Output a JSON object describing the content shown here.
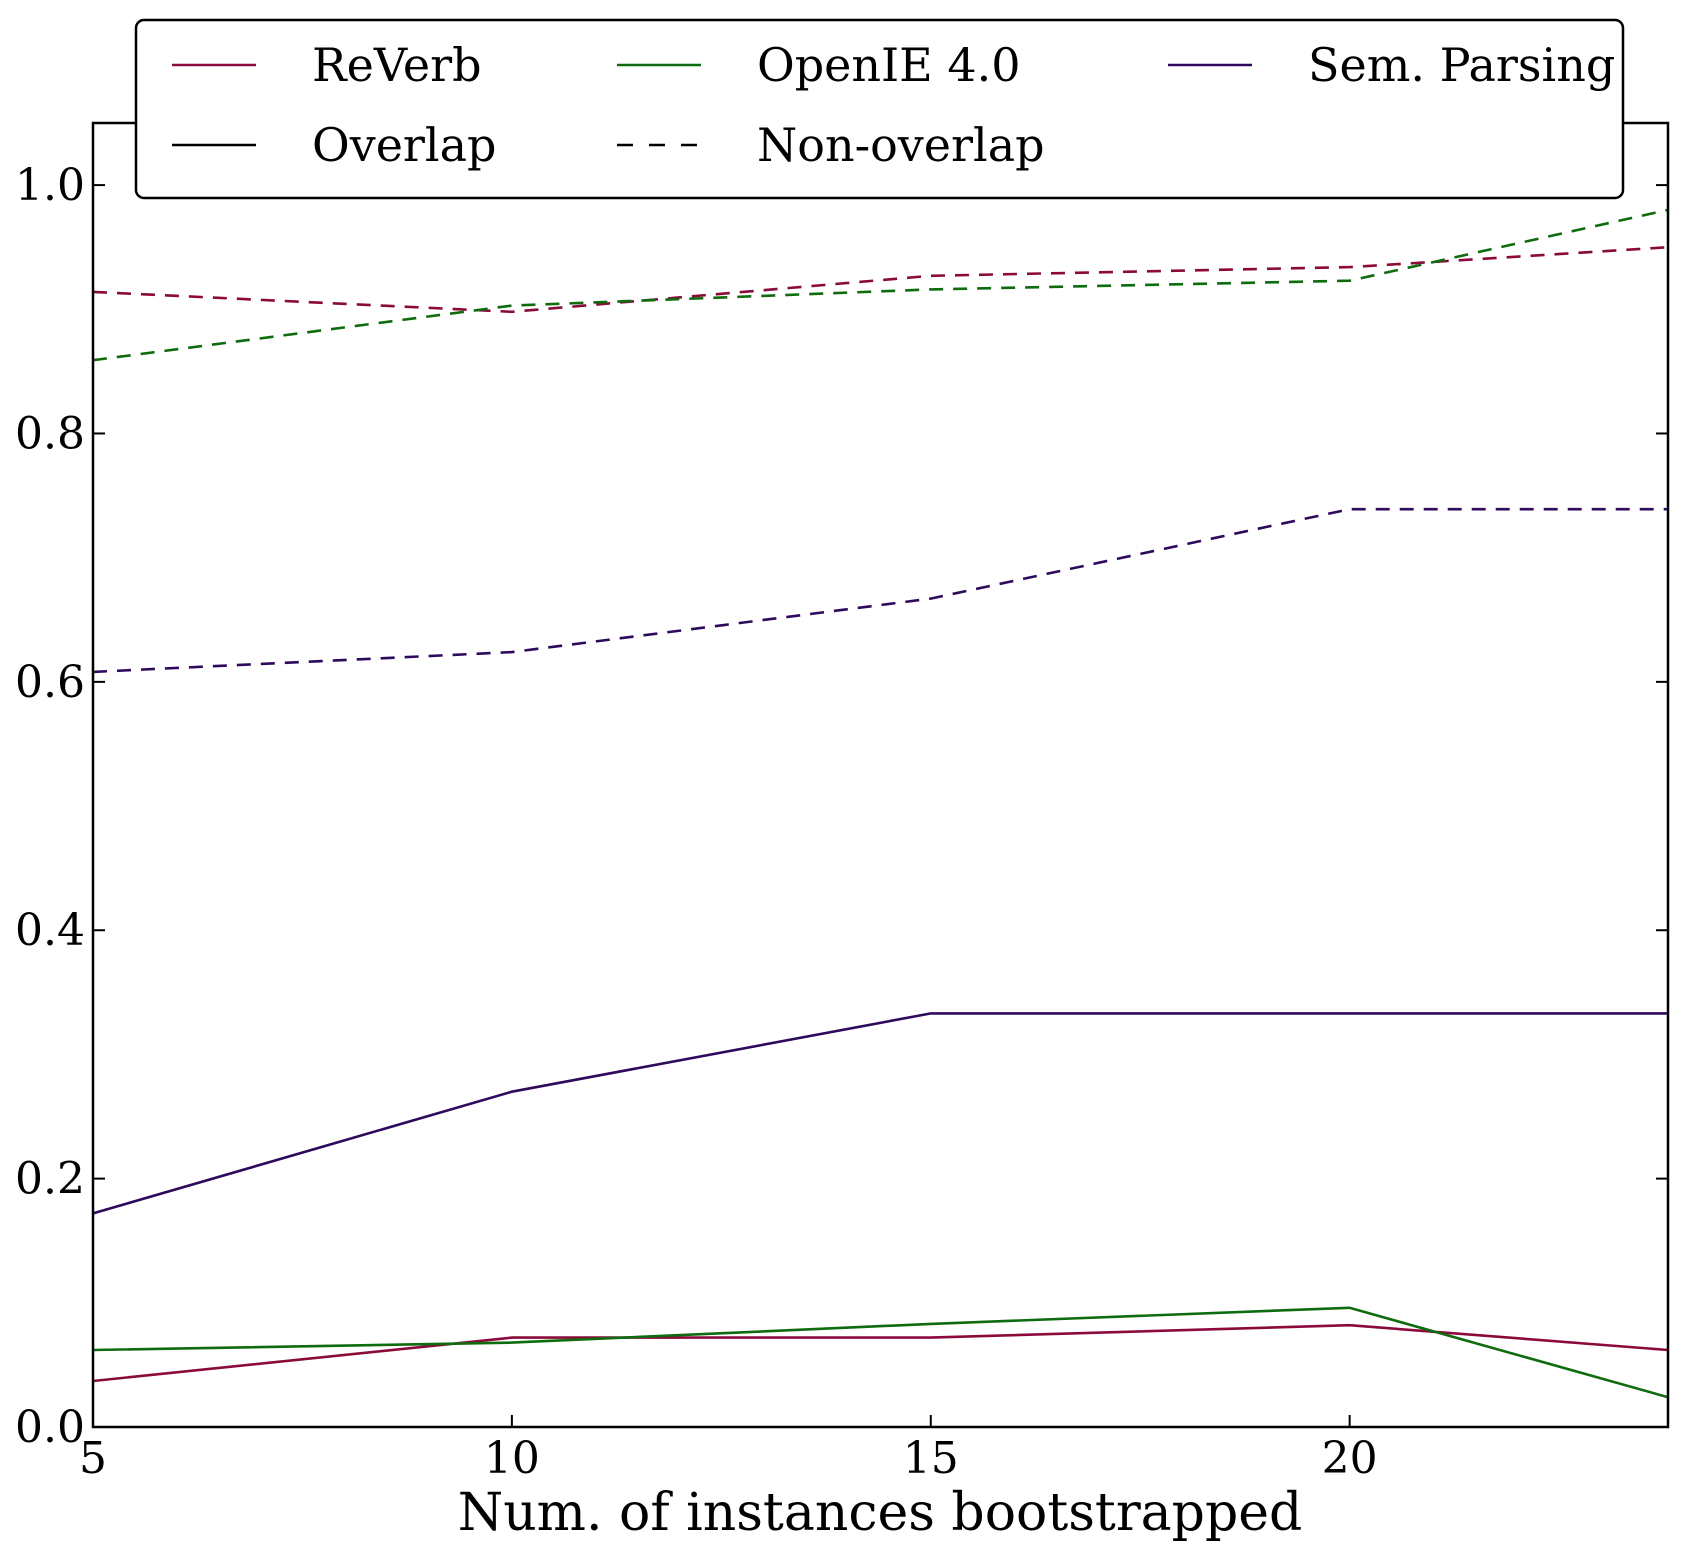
{
  "chart_data": {
    "type": "line",
    "xlabel": "Num. of instances bootstrapped",
    "ylabel": "",
    "xlim": [
      5,
      23.8
    ],
    "ylim": [
      0.0,
      1.05
    ],
    "x_ticks": [
      5,
      10,
      15,
      20
    ],
    "y_ticks": [
      0.0,
      0.2,
      0.4,
      0.6,
      0.8,
      1.0
    ],
    "x_tick_labels": [
      "5",
      "10",
      "15",
      "20"
    ],
    "y_tick_labels": [
      "0.0",
      "0.2",
      "0.4",
      "0.6",
      "0.8",
      "1.0"
    ],
    "grid": false,
    "legend_position": "top",
    "x": [
      5,
      10,
      15,
      20,
      23.8
    ],
    "series": [
      {
        "name": "ReVerb",
        "style": "solid",
        "color": "#8b0a3c",
        "values": [
          0.037,
          0.072,
          0.072,
          0.082,
          0.062
        ]
      },
      {
        "name": "OpenIE 4.0",
        "style": "solid",
        "color": "#0e6b0e",
        "values": [
          0.062,
          0.068,
          0.083,
          0.096,
          0.024
        ]
      },
      {
        "name": "Sem. Parsing",
        "style": "solid",
        "color": "#2e0a5c",
        "values": [
          0.172,
          0.27,
          0.333,
          0.333,
          0.333
        ]
      },
      {
        "name": "ReVerb",
        "style": "dashed",
        "color": "#8b0a3c",
        "values": [
          0.914,
          0.898,
          0.927,
          0.934,
          0.95
        ]
      },
      {
        "name": "OpenIE 4.0",
        "style": "dashed",
        "color": "#0e6b0e",
        "values": [
          0.859,
          0.903,
          0.916,
          0.923,
          0.98
        ]
      },
      {
        "name": "Sem. Parsing",
        "style": "dashed",
        "color": "#2e0a5c",
        "values": [
          0.608,
          0.624,
          0.667,
          0.739,
          0.739
        ]
      }
    ],
    "legend": [
      {
        "label": "ReVerb",
        "color": "#8b0a3c",
        "style": "solid"
      },
      {
        "label": "OpenIE 4.0",
        "color": "#0e6b0e",
        "style": "solid"
      },
      {
        "label": "Sem. Parsing",
        "color": "#2e0a5c",
        "style": "solid"
      },
      {
        "label": "Overlap",
        "color": "#000000",
        "style": "solid"
      },
      {
        "label": "Non-overlap",
        "color": "#000000",
        "style": "dashed"
      }
    ]
  }
}
